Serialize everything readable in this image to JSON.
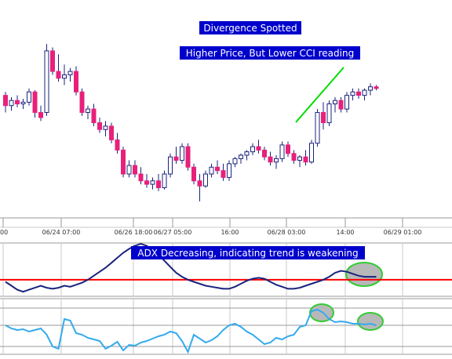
{
  "chart_data": [
    {
      "type": "candlestick",
      "x_tick_labels": [
        "00",
        "06/24 07:00",
        "06/26 18:00",
        "06/27 05:00",
        "16:00",
        "06/28 03:00",
        "14:00",
        "06/29 01:00"
      ],
      "candles": [
        {
          "o": 58,
          "h": 60,
          "l": 48,
          "c": 52
        },
        {
          "o": 52,
          "h": 57,
          "l": 49,
          "c": 55
        },
        {
          "o": 55,
          "h": 58,
          "l": 51,
          "c": 53
        },
        {
          "o": 53,
          "h": 56,
          "l": 50,
          "c": 54
        },
        {
          "o": 54,
          "h": 62,
          "l": 52,
          "c": 60
        },
        {
          "o": 60,
          "h": 61,
          "l": 45,
          "c": 48
        },
        {
          "o": 48,
          "h": 52,
          "l": 43,
          "c": 45
        },
        {
          "o": 48,
          "h": 88,
          "l": 46,
          "c": 84
        },
        {
          "o": 84,
          "h": 86,
          "l": 70,
          "c": 72
        },
        {
          "o": 72,
          "h": 82,
          "l": 66,
          "c": 68
        },
        {
          "o": 68,
          "h": 76,
          "l": 64,
          "c": 70
        },
        {
          "o": 70,
          "h": 74,
          "l": 66,
          "c": 72
        },
        {
          "o": 72,
          "h": 75,
          "l": 58,
          "c": 60
        },
        {
          "o": 60,
          "h": 62,
          "l": 46,
          "c": 48
        },
        {
          "o": 48,
          "h": 52,
          "l": 44,
          "c": 50
        },
        {
          "o": 50,
          "h": 53,
          "l": 40,
          "c": 42
        },
        {
          "o": 42,
          "h": 45,
          "l": 36,
          "c": 38
        },
        {
          "o": 38,
          "h": 43,
          "l": 34,
          "c": 40
        },
        {
          "o": 40,
          "h": 42,
          "l": 30,
          "c": 32
        },
        {
          "o": 32,
          "h": 36,
          "l": 24,
          "c": 26
        },
        {
          "o": 26,
          "h": 28,
          "l": 10,
          "c": 12
        },
        {
          "o": 12,
          "h": 20,
          "l": 10,
          "c": 17
        },
        {
          "o": 17,
          "h": 20,
          "l": 10,
          "c": 12
        },
        {
          "o": 12,
          "h": 16,
          "l": 6,
          "c": 8
        },
        {
          "o": 8,
          "h": 12,
          "l": 4,
          "c": 6
        },
        {
          "o": 6,
          "h": 10,
          "l": 3,
          "c": 8
        },
        {
          "o": 8,
          "h": 12,
          "l": 2,
          "c": 4
        },
        {
          "o": 4,
          "h": 14,
          "l": 3,
          "c": 12
        },
        {
          "o": 12,
          "h": 24,
          "l": 10,
          "c": 22
        },
        {
          "o": 22,
          "h": 28,
          "l": 18,
          "c": 20
        },
        {
          "o": 20,
          "h": 30,
          "l": 18,
          "c": 28
        },
        {
          "o": 28,
          "h": 30,
          "l": 14,
          "c": 16
        },
        {
          "o": 16,
          "h": 18,
          "l": 6,
          "c": 8
        },
        {
          "o": 8,
          "h": 12,
          "l": -4,
          "c": 5
        },
        {
          "o": 5,
          "h": 14,
          "l": 4,
          "c": 12
        },
        {
          "o": 12,
          "h": 18,
          "l": 10,
          "c": 16
        },
        {
          "o": 16,
          "h": 20,
          "l": 12,
          "c": 14
        },
        {
          "o": 14,
          "h": 18,
          "l": 8,
          "c": 10
        },
        {
          "o": 10,
          "h": 20,
          "l": 8,
          "c": 18
        },
        {
          "o": 18,
          "h": 22,
          "l": 16,
          "c": 21
        },
        {
          "o": 21,
          "h": 24,
          "l": 18,
          "c": 23
        },
        {
          "o": 23,
          "h": 26,
          "l": 20,
          "c": 25
        },
        {
          "o": 25,
          "h": 30,
          "l": 23,
          "c": 28
        },
        {
          "o": 28,
          "h": 32,
          "l": 24,
          "c": 26
        },
        {
          "o": 26,
          "h": 28,
          "l": 20,
          "c": 22
        },
        {
          "o": 22,
          "h": 25,
          "l": 17,
          "c": 19
        },
        {
          "o": 19,
          "h": 23,
          "l": 15,
          "c": 21
        },
        {
          "o": 21,
          "h": 31,
          "l": 19,
          "c": 29
        },
        {
          "o": 29,
          "h": 31,
          "l": 22,
          "c": 24
        },
        {
          "o": 24,
          "h": 26,
          "l": 18,
          "c": 20
        },
        {
          "o": 20,
          "h": 23,
          "l": 16,
          "c": 22
        },
        {
          "o": 22,
          "h": 26,
          "l": 17,
          "c": 19
        },
        {
          "o": 19,
          "h": 32,
          "l": 18,
          "c": 30
        },
        {
          "o": 30,
          "h": 50,
          "l": 28,
          "c": 48
        },
        {
          "o": 48,
          "h": 54,
          "l": 38,
          "c": 42
        },
        {
          "o": 42,
          "h": 55,
          "l": 40,
          "c": 53
        },
        {
          "o": 53,
          "h": 57,
          "l": 48,
          "c": 55
        },
        {
          "o": 55,
          "h": 57,
          "l": 48,
          "c": 50
        },
        {
          "o": 50,
          "h": 60,
          "l": 48,
          "c": 58
        },
        {
          "o": 58,
          "h": 62,
          "l": 55,
          "c": 60
        },
        {
          "o": 60,
          "h": 62,
          "l": 56,
          "c": 58
        },
        {
          "o": 58,
          "h": 62,
          "l": 55,
          "c": 61
        },
        {
          "o": 61,
          "h": 65,
          "l": 58,
          "c": 63
        },
        {
          "o": 63,
          "h": 64,
          "l": 61,
          "c": 62
        }
      ],
      "overlay_line_color": "#00dd00",
      "up_color": "#ffffff",
      "down_color": "#e8207a",
      "wick_color": "#1a237e"
    },
    {
      "type": "line",
      "series": [
        {
          "color": "#1a237e",
          "values": [
            38,
            34,
            30,
            28,
            30,
            32,
            34,
            32,
            31,
            32,
            34,
            33,
            35,
            37,
            40,
            44,
            48,
            52,
            57,
            62,
            67,
            71,
            74,
            76,
            74,
            70,
            65,
            59,
            53,
            47,
            43,
            40,
            38,
            36,
            34,
            33,
            32,
            31,
            31,
            33,
            36,
            39,
            41,
            42,
            41,
            38,
            35,
            33,
            31,
            31,
            32,
            34,
            36,
            38,
            40,
            43,
            47,
            49,
            48,
            46,
            44,
            43,
            43,
            43
          ]
        }
      ],
      "reference_line": {
        "value": 40,
        "color": "#ff0000"
      },
      "ylim": [
        25,
        80
      ]
    },
    {
      "type": "line",
      "series": [
        {
          "color": "#33aaee",
          "values": [
            22,
            18,
            16,
            17,
            14,
            16,
            18,
            10,
            -5,
            -8,
            30,
            28,
            12,
            10,
            6,
            4,
            2,
            -8,
            -4,
            1,
            -10,
            -3,
            -4,
            0,
            2,
            5,
            8,
            10,
            14,
            12,
            2,
            -12,
            10,
            5,
            0,
            3,
            8,
            16,
            22,
            24,
            20,
            14,
            10,
            4,
            -2,
            0,
            6,
            4,
            8,
            10,
            20,
            22,
            40,
            42,
            38,
            30,
            26,
            27,
            26,
            24,
            24,
            23,
            24,
            22
          ]
        }
      ],
      "reference_lines": [
        -5,
        22,
        44
      ],
      "ylim": [
        -15,
        55
      ]
    }
  ],
  "annotations": {
    "divergence": "Divergence Spotted",
    "higher_price": "Higher Price, But Lower CCI reading",
    "adx": "ADX Decreasing, indicating trend is weakening"
  },
  "colors": {
    "annotation_bg": "#0000cc",
    "highlight_fill": "#b8b8b8",
    "highlight_stroke": "#33cc33",
    "grid": "#c8c8c8",
    "axis": "#999999"
  }
}
